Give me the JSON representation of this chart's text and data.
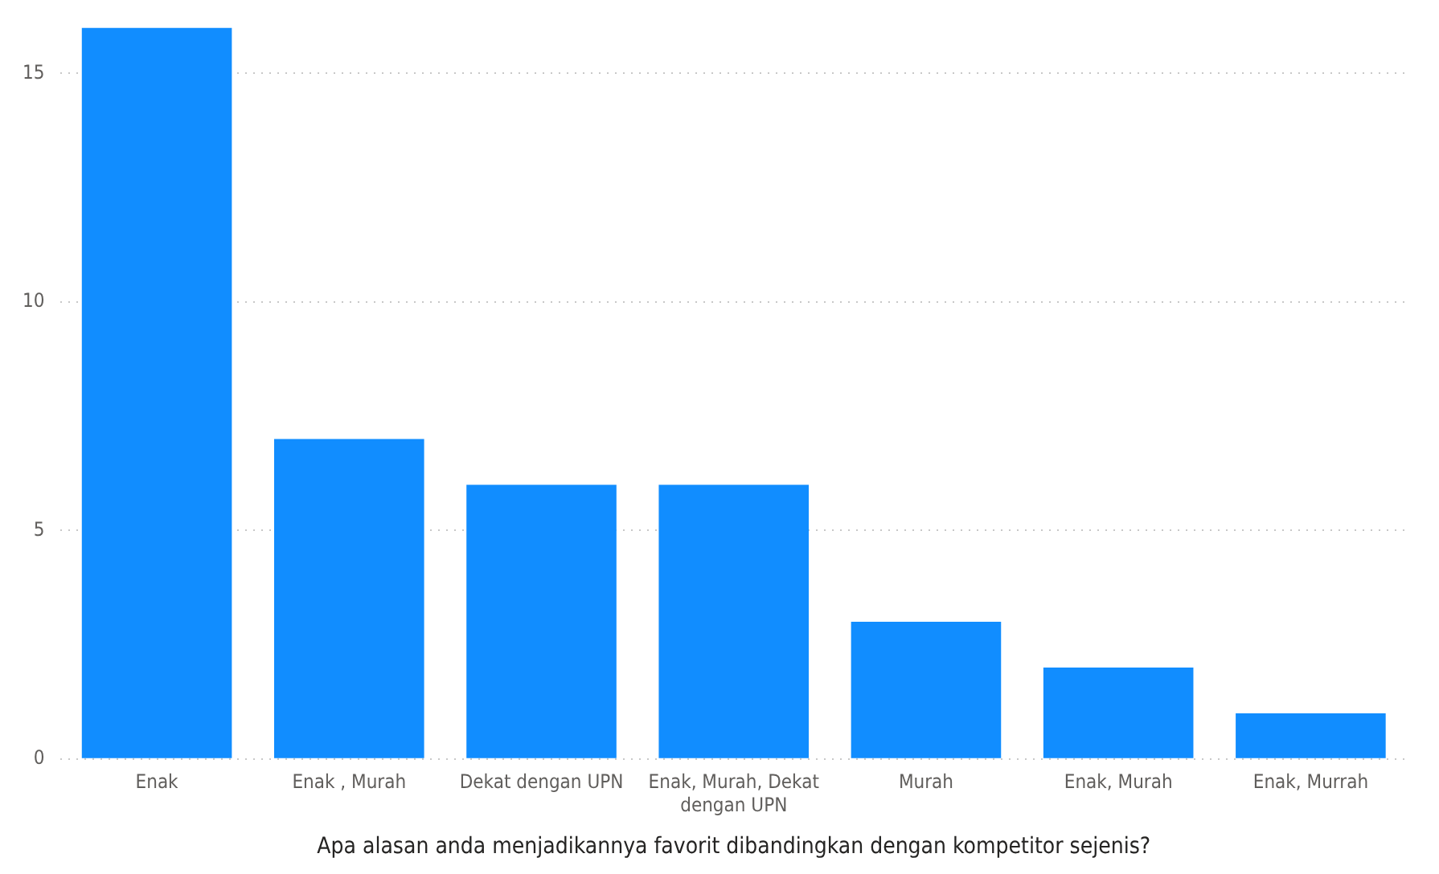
{
  "chart_data": {
    "type": "bar",
    "xlabel": "Apa alasan anda menjadikannya favorit dibandingkan dengan kompetitor sejenis?",
    "categories": [
      "Enak",
      "Enak , Murah",
      "Dekat dengan UPN",
      "Enak, Murah, Dekat dengan UPN",
      "Murah",
      "Enak, Murah",
      "Enak, Murrah"
    ],
    "values": [
      16,
      7,
      6,
      6,
      3,
      2,
      1
    ],
    "color": "#118dff",
    "ylim": [
      0,
      16
    ],
    "yticks": [
      0,
      5,
      10,
      15
    ],
    "grid": "y",
    "legend": false
  }
}
